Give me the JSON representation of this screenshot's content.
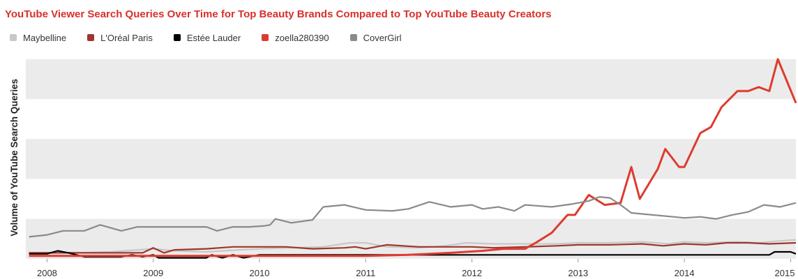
{
  "chart_data": {
    "type": "line",
    "title": "YouTube Viewer Search Queries Over Time for Top Beauty Brands Compared to Top YouTube Beauty Creators",
    "xlabel": "",
    "ylabel": "Volume of YouTube Search Queries",
    "x_ticks": [
      "2008",
      "2009",
      "2010",
      "2011",
      "2012",
      "2013",
      "2014",
      "2015"
    ],
    "xlim": [
      2007.8,
      2015.05
    ],
    "ylim": [
      0,
      100
    ],
    "grid": "alternating horizontal bands",
    "legend_position": "top-left",
    "series": [
      {
        "name": "Maybelline",
        "color": "#c8c8c8",
        "points": [
          [
            2007.83,
            3
          ],
          [
            2008.3,
            3
          ],
          [
            2008.6,
            3.5
          ],
          [
            2009.0,
            5
          ],
          [
            2009.2,
            4
          ],
          [
            2009.5,
            3.5
          ],
          [
            2009.8,
            4.5
          ],
          [
            2010.0,
            5
          ],
          [
            2010.3,
            5.5
          ],
          [
            2010.6,
            6
          ],
          [
            2010.85,
            8
          ],
          [
            2011.0,
            8
          ],
          [
            2011.2,
            6
          ],
          [
            2011.5,
            5.5
          ],
          [
            2011.75,
            6.5
          ],
          [
            2011.95,
            8
          ],
          [
            2012.2,
            7.5
          ],
          [
            2012.5,
            7.5
          ],
          [
            2012.8,
            7.5
          ],
          [
            2013.0,
            8
          ],
          [
            2013.3,
            8
          ],
          [
            2013.6,
            8.5
          ],
          [
            2013.85,
            7.5
          ],
          [
            2014.0,
            8.5
          ],
          [
            2014.2,
            8
          ],
          [
            2014.5,
            8.5
          ],
          [
            2014.7,
            8
          ],
          [
            2014.9,
            9
          ],
          [
            2015.05,
            9.5
          ]
        ]
      },
      {
        "name": "L'Oréal Paris",
        "color": "#a0352c",
        "points": [
          [
            2007.83,
            3
          ],
          [
            2008.5,
            3
          ],
          [
            2008.9,
            3
          ],
          [
            2009.0,
            5.5
          ],
          [
            2009.1,
            3
          ],
          [
            2009.2,
            4.5
          ],
          [
            2009.5,
            5
          ],
          [
            2009.75,
            6
          ],
          [
            2010.0,
            6
          ],
          [
            2010.25,
            6
          ],
          [
            2010.5,
            5
          ],
          [
            2010.8,
            5.5
          ],
          [
            2010.9,
            6
          ],
          [
            2011.0,
            5
          ],
          [
            2011.2,
            7
          ],
          [
            2011.5,
            6
          ],
          [
            2011.8,
            6
          ],
          [
            2012.0,
            6
          ],
          [
            2012.2,
            5.5
          ],
          [
            2012.5,
            6
          ],
          [
            2012.8,
            6.5
          ],
          [
            2013.0,
            7
          ],
          [
            2013.3,
            7
          ],
          [
            2013.6,
            7.5
          ],
          [
            2013.8,
            6.5
          ],
          [
            2014.0,
            7.5
          ],
          [
            2014.2,
            7
          ],
          [
            2014.4,
            8
          ],
          [
            2014.6,
            8
          ],
          [
            2014.8,
            7.5
          ],
          [
            2015.05,
            8
          ]
        ]
      },
      {
        "name": "Estée Lauder",
        "color": "#000000",
        "points": [
          [
            2007.83,
            2.5
          ],
          [
            2008.0,
            2.5
          ],
          [
            2008.1,
            4
          ],
          [
            2008.2,
            3
          ],
          [
            2008.35,
            1
          ],
          [
            2008.7,
            1
          ],
          [
            2008.8,
            2
          ],
          [
            2008.9,
            1
          ],
          [
            2009.0,
            2
          ],
          [
            2009.05,
            0.5
          ],
          [
            2009.5,
            0.5
          ],
          [
            2009.55,
            2
          ],
          [
            2009.65,
            0.5
          ],
          [
            2009.75,
            2
          ],
          [
            2009.85,
            0.5
          ],
          [
            2010.0,
            2
          ],
          [
            2011.0,
            2
          ],
          [
            2011.5,
            2
          ],
          [
            2012.0,
            2
          ],
          [
            2013.0,
            2
          ],
          [
            2014.0,
            2
          ],
          [
            2014.5,
            2
          ],
          [
            2014.8,
            2
          ],
          [
            2014.85,
            3.5
          ],
          [
            2015.0,
            3.5
          ],
          [
            2015.05,
            2.5
          ]
        ]
      },
      {
        "name": "zoella280390",
        "color": "#dd3b2f",
        "points": [
          [
            2007.83,
            1.5
          ],
          [
            2008.5,
            1.5
          ],
          [
            2009.0,
            1.5
          ],
          [
            2010.0,
            1.5
          ],
          [
            2011.0,
            1.5
          ],
          [
            2011.4,
            2
          ],
          [
            2011.8,
            3
          ],
          [
            2012.1,
            4
          ],
          [
            2012.3,
            5
          ],
          [
            2012.5,
            5
          ],
          [
            2012.6,
            8
          ],
          [
            2012.75,
            13
          ],
          [
            2012.9,
            22
          ],
          [
            2012.97,
            22
          ],
          [
            2013.1,
            32
          ],
          [
            2013.25,
            27
          ],
          [
            2013.4,
            28
          ],
          [
            2013.5,
            46
          ],
          [
            2013.58,
            30
          ],
          [
            2013.75,
            45
          ],
          [
            2013.82,
            55
          ],
          [
            2013.95,
            46
          ],
          [
            2014.0,
            46
          ],
          [
            2014.15,
            63
          ],
          [
            2014.25,
            66
          ],
          [
            2014.35,
            76
          ],
          [
            2014.5,
            84
          ],
          [
            2014.6,
            84
          ],
          [
            2014.7,
            86
          ],
          [
            2014.8,
            84
          ],
          [
            2014.88,
            100
          ],
          [
            2015.05,
            78
          ]
        ]
      },
      {
        "name": "CoverGirl",
        "color": "#8a8a8a",
        "points": [
          [
            2007.83,
            11
          ],
          [
            2008.0,
            12
          ],
          [
            2008.15,
            14
          ],
          [
            2008.35,
            14
          ],
          [
            2008.5,
            17
          ],
          [
            2008.7,
            14
          ],
          [
            2008.85,
            16
          ],
          [
            2009.0,
            16
          ],
          [
            2009.25,
            16
          ],
          [
            2009.5,
            16
          ],
          [
            2009.6,
            14
          ],
          [
            2009.75,
            16
          ],
          [
            2009.9,
            16
          ],
          [
            2010.05,
            16.5
          ],
          [
            2010.1,
            17
          ],
          [
            2010.15,
            20
          ],
          [
            2010.3,
            18
          ],
          [
            2010.5,
            19.5
          ],
          [
            2010.6,
            26
          ],
          [
            2010.8,
            27
          ],
          [
            2011.0,
            24.5
          ],
          [
            2011.25,
            24
          ],
          [
            2011.4,
            25
          ],
          [
            2011.6,
            28.5
          ],
          [
            2011.8,
            26
          ],
          [
            2012.0,
            27
          ],
          [
            2012.1,
            25
          ],
          [
            2012.25,
            26
          ],
          [
            2012.4,
            24
          ],
          [
            2012.5,
            27
          ],
          [
            2012.75,
            26
          ],
          [
            2012.95,
            27.5
          ],
          [
            2013.1,
            29
          ],
          [
            2013.2,
            31
          ],
          [
            2013.3,
            30.5
          ],
          [
            2013.4,
            27
          ],
          [
            2013.5,
            23
          ],
          [
            2013.7,
            22
          ],
          [
            2013.9,
            21
          ],
          [
            2014.0,
            20.5
          ],
          [
            2014.15,
            21
          ],
          [
            2014.3,
            20
          ],
          [
            2014.45,
            22
          ],
          [
            2014.6,
            23.5
          ],
          [
            2014.75,
            27
          ],
          [
            2014.9,
            26
          ],
          [
            2015.05,
            28
          ]
        ]
      }
    ]
  }
}
